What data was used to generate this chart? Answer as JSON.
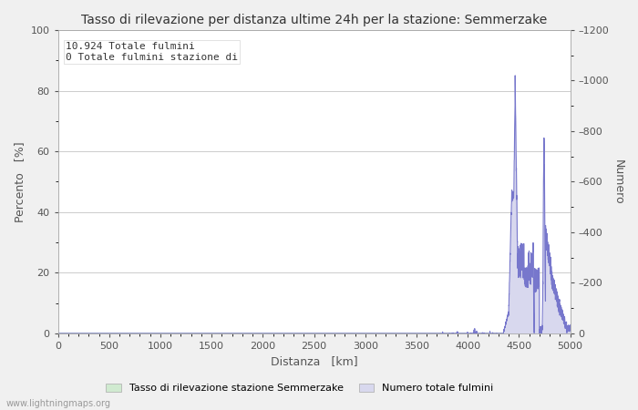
{
  "title": "Tasso di rilevazione per distanza ultime 24h per la stazione: Semmerzake",
  "xlabel": "Distanza   [km]",
  "ylabel_left": "Percento   [%]",
  "ylabel_right": "Numero",
  "annotation_line1": "10.924 Totale fulmini",
  "annotation_line2": "0 Totale fulmini stazione di",
  "legend_label_green": "Tasso di rilevazione stazione Semmerzake",
  "legend_label_blue": "Numero totale fulmini",
  "watermark": "www.lightningmaps.org",
  "xlim": [
    0,
    5000
  ],
  "ylim_left": [
    0,
    100
  ],
  "ylim_right": [
    0,
    1200
  ],
  "xticks": [
    0,
    500,
    1000,
    1500,
    2000,
    2500,
    3000,
    3500,
    4000,
    4500,
    5000
  ],
  "yticks_left": [
    0,
    20,
    40,
    60,
    80,
    100
  ],
  "yticks_right": [
    0,
    200,
    400,
    600,
    800,
    1000,
    1200
  ],
  "bg_color": "#f0f0f0",
  "plot_bg_color": "#ffffff",
  "line_color": "#7777cc",
  "fill_color": "#d8d8ee",
  "green_fill_color": "#d0ead0",
  "green_line_color": "#88bb88",
  "grid_color": "#cccccc",
  "tick_color": "#555555",
  "text_color": "#333333"
}
